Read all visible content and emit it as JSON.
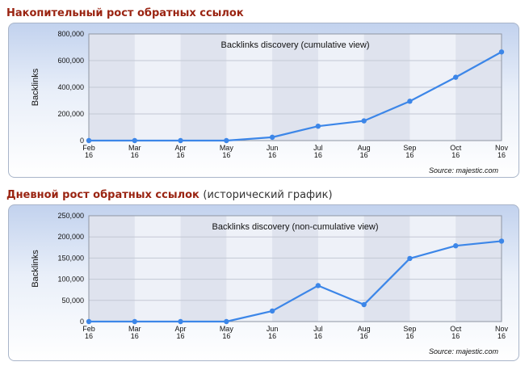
{
  "headings": [
    {
      "main": "Накопительный рост обратных ссылок",
      "sub": ""
    },
    {
      "main": "Дневной рост обратных ссылок",
      "sub": "(исторический график)"
    }
  ],
  "chart_data": [
    {
      "type": "line",
      "title": "Backlinks discovery (cumulative view)",
      "ylabel": "Backlinks",
      "xlabel": "",
      "source": "Source: majestic.com",
      "categories": [
        [
          "Feb",
          "16"
        ],
        [
          "Mar",
          "16"
        ],
        [
          "Apr",
          "16"
        ],
        [
          "May",
          "16"
        ],
        [
          "Jun",
          "16"
        ],
        [
          "Jul",
          "16"
        ],
        [
          "Aug",
          "16"
        ],
        [
          "Sep",
          "16"
        ],
        [
          "Oct",
          "16"
        ],
        [
          "Nov",
          "16"
        ]
      ],
      "values": [
        0,
        0,
        0,
        0,
        25000,
        108000,
        148000,
        295000,
        475000,
        665000
      ],
      "ylim": [
        0,
        800000
      ],
      "yticks": [
        "0",
        "200,000",
        "400,000",
        "600,000",
        "800,000"
      ],
      "line_color": "#3c86e8",
      "grid": true
    },
    {
      "type": "line",
      "title": "Backlinks discovery (non-cumulative view)",
      "ylabel": "Backlinks",
      "xlabel": "",
      "source": "Source: majestic.com",
      "categories": [
        [
          "Feb",
          "16"
        ],
        [
          "Mar",
          "16"
        ],
        [
          "Apr",
          "16"
        ],
        [
          "May",
          "16"
        ],
        [
          "Jun",
          "16"
        ],
        [
          "Jul",
          "16"
        ],
        [
          "Aug",
          "16"
        ],
        [
          "Sep",
          "16"
        ],
        [
          "Oct",
          "16"
        ],
        [
          "Nov",
          "16"
        ]
      ],
      "values": [
        0,
        0,
        0,
        0,
        25000,
        85000,
        40000,
        149000,
        179000,
        190000
      ],
      "ylim": [
        0,
        250000
      ],
      "yticks": [
        "0",
        "50,000",
        "100,000",
        "150,000",
        "200,000",
        "250,000"
      ],
      "line_color": "#3c86e8",
      "grid": true
    }
  ]
}
